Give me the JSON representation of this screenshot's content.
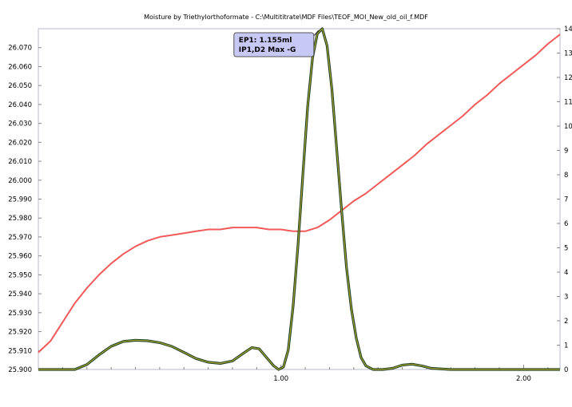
{
  "chart_data": {
    "type": "line",
    "title": "Moisture by Triethylorthoformate - C:\\Multititrate\\MDF Files\\TEOF_MOI_New_old_oil_f.MDF",
    "xlabel": "",
    "ylabel": "",
    "xlim": [
      0.0,
      2.15
    ],
    "ylim": [
      25.9,
      26.08
    ],
    "y2lim": [
      0,
      14
    ],
    "xticks": [
      1.0,
      2.0
    ],
    "xtick_labels": [
      "1.00",
      "2.00"
    ],
    "yticks": [
      25.9,
      25.91,
      25.92,
      25.93,
      25.94,
      25.95,
      25.96,
      25.97,
      25.98,
      25.99,
      26.0,
      26.01,
      26.02,
      26.03,
      26.04,
      26.05,
      26.06,
      26.07
    ],
    "ytick_labels": [
      "25.900",
      "25.910",
      "25.920",
      "25.930",
      "25.940",
      "25.950",
      "25.960",
      "25.970",
      "25.980",
      "25.990",
      "26.000",
      "26.010",
      "26.020",
      "26.030",
      "26.040",
      "26.050",
      "26.060",
      "26.070"
    ],
    "y2ticks": [
      0,
      1,
      2,
      3,
      4,
      5,
      6,
      7,
      8,
      9,
      10,
      11,
      12,
      13,
      14
    ],
    "y2tick_labels": [
      "0",
      "1",
      "2",
      "3",
      "4",
      "5",
      "6",
      "7",
      "8",
      "9",
      "10",
      "11",
      "12",
      "13",
      "14"
    ],
    "grid": false,
    "series": [
      {
        "axis": "left",
        "color": "#f25a5a",
        "x": [
          0.0,
          0.05,
          0.1,
          0.15,
          0.2,
          0.25,
          0.3,
          0.35,
          0.4,
          0.45,
          0.5,
          0.55,
          0.6,
          0.65,
          0.7,
          0.75,
          0.8,
          0.85,
          0.9,
          0.95,
          1.0,
          1.05,
          1.1,
          1.15,
          1.2,
          1.25,
          1.3,
          1.35,
          1.4,
          1.45,
          1.5,
          1.55,
          1.6,
          1.65,
          1.7,
          1.75,
          1.8,
          1.85,
          1.9,
          1.95,
          2.0,
          2.05,
          2.1,
          2.15
        ],
        "values": [
          25.909,
          25.915,
          25.925,
          25.935,
          25.943,
          25.95,
          25.956,
          25.961,
          25.965,
          25.968,
          25.97,
          25.971,
          25.972,
          25.973,
          25.974,
          25.974,
          25.975,
          25.975,
          25.975,
          25.974,
          25.974,
          25.973,
          25.973,
          25.975,
          25.979,
          25.984,
          25.989,
          25.993,
          25.998,
          26.003,
          26.008,
          26.013,
          26.019,
          26.024,
          26.029,
          26.034,
          26.04,
          26.045,
          26.051,
          26.056,
          26.061,
          26.066,
          26.072,
          26.077
        ]
      },
      {
        "axis": "right",
        "color": "#5b5b1a",
        "x": [
          0.0,
          0.1,
          0.15,
          0.2,
          0.25,
          0.3,
          0.35,
          0.4,
          0.45,
          0.5,
          0.55,
          0.6,
          0.65,
          0.7,
          0.75,
          0.8,
          0.85,
          0.88,
          0.91,
          0.94,
          0.97,
          0.99,
          1.01,
          1.03,
          1.05,
          1.07,
          1.09,
          1.11,
          1.13,
          1.15,
          1.17,
          1.19,
          1.21,
          1.23,
          1.25,
          1.27,
          1.29,
          1.31,
          1.33,
          1.35,
          1.38,
          1.42,
          1.46,
          1.5,
          1.54,
          1.58,
          1.62,
          1.7,
          1.8,
          1.9,
          2.0,
          2.15
        ],
        "values": [
          0,
          0,
          0,
          0.2,
          0.6,
          0.95,
          1.15,
          1.2,
          1.18,
          1.1,
          0.95,
          0.7,
          0.45,
          0.3,
          0.25,
          0.35,
          0.7,
          0.9,
          0.85,
          0.5,
          0.15,
          0.0,
          0.1,
          0.8,
          2.6,
          5.1,
          8.0,
          10.8,
          12.8,
          13.8,
          14.0,
          13.3,
          11.5,
          9.0,
          6.5,
          4.2,
          2.5,
          1.3,
          0.5,
          0.15,
          0.0,
          0.0,
          0.05,
          0.18,
          0.22,
          0.15,
          0.05,
          0,
          0,
          0,
          0,
          0
        ]
      }
    ],
    "annotations": [
      {
        "lines": [
          "EP1: 1.155ml",
          "IP1,D2 Max -G"
        ],
        "x": 1.155,
        "y2": 14
      }
    ]
  }
}
